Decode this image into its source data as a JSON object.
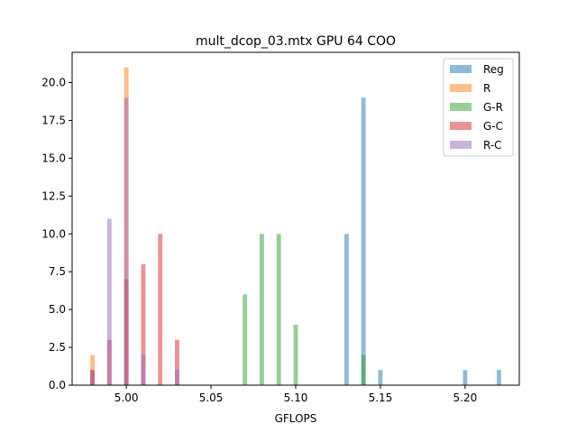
{
  "chart_data": {
    "type": "bar",
    "title": "mult_dcop_03.mtx GPU 64 COO",
    "xlabel": "GFLOPS",
    "ylabel": "",
    "xlim": [
      4.968,
      5.232
    ],
    "ylim": [
      0,
      22
    ],
    "bin_width": 0.0026,
    "xticks": [
      5.0,
      5.05,
      5.1,
      5.15,
      5.2
    ],
    "xtick_labels": [
      "5.00",
      "5.05",
      "5.10",
      "5.15",
      "5.20"
    ],
    "yticks": [
      0,
      2.5,
      5,
      7.5,
      10,
      12.5,
      15,
      17.5,
      20
    ],
    "ytick_labels": [
      "0.0",
      "2.5",
      "5.0",
      "7.5",
      "10.0",
      "12.5",
      "15.0",
      "17.5",
      "20.0"
    ],
    "grid": false,
    "legend_position": "top-right",
    "series": [
      {
        "name": "Reg",
        "color": "#1f77b4",
        "opacity": 0.5,
        "x": [
          5.13,
          5.14,
          5.15,
          5.2,
          5.22
        ],
        "values": [
          10,
          19,
          1,
          1,
          1
        ]
      },
      {
        "name": "R",
        "color": "#ff7f0e",
        "opacity": 0.5,
        "x": [
          4.98,
          5.0
        ],
        "values": [
          2,
          21
        ]
      },
      {
        "name": "G-R",
        "color": "#2ca02c",
        "opacity": 0.5,
        "x": [
          5.07,
          5.08,
          5.09,
          5.1,
          5.14
        ],
        "values": [
          6,
          10,
          10,
          4,
          2
        ]
      },
      {
        "name": "G-C",
        "color": "#d62728",
        "opacity": 0.5,
        "x": [
          4.98,
          4.99,
          5.0,
          5.01,
          5.02,
          5.03
        ],
        "values": [
          1,
          3,
          7,
          8,
          10,
          3
        ]
      },
      {
        "name": "R-C",
        "color": "#9467bd",
        "opacity": 0.5,
        "x": [
          4.98,
          4.99,
          5.0,
          5.01,
          5.03
        ],
        "values": [
          1,
          11,
          19,
          2,
          1
        ]
      }
    ]
  }
}
